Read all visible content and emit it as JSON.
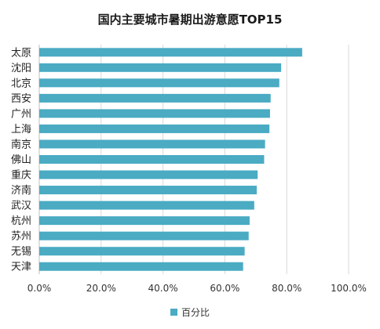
{
  "chart_data": {
    "type": "bar",
    "orientation": "horizontal",
    "title": "国内主要城市暑期出游意愿TOP15",
    "categories": [
      "太原",
      "沈阳",
      "北京",
      "西安",
      "广州",
      "上海",
      "南京",
      "佛山",
      "重庆",
      "济南",
      "武汉",
      "杭州",
      "苏州",
      "无锡",
      "天津"
    ],
    "series": [
      {
        "name": "百分比",
        "color": "#4aabc3",
        "values": [
          85.0,
          78.2,
          77.6,
          74.8,
          74.6,
          74.4,
          73.0,
          72.7,
          70.6,
          70.3,
          69.5,
          68.0,
          67.7,
          66.4,
          65.9
        ]
      }
    ],
    "xlim": [
      0,
      100
    ],
    "xticks": [
      0,
      20,
      40,
      60,
      80,
      100
    ],
    "xtick_labels": [
      "0.0%",
      "20.0%",
      "40.0%",
      "60.0%",
      "80.0%",
      "100.0%"
    ],
    "grid": true,
    "legend_position": "bottom"
  }
}
